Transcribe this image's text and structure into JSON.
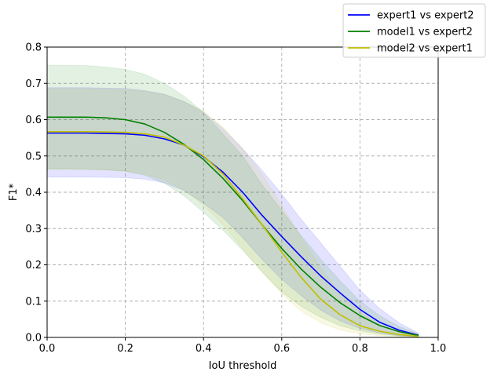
{
  "chart_data": {
    "type": "line",
    "xlabel": "IoU threshold",
    "ylabel": "F1*",
    "xlim": [
      0.0,
      1.0
    ],
    "ylim": [
      0.0,
      0.8
    ],
    "xticks": [
      "0.0",
      "0.2",
      "0.4",
      "0.6",
      "0.8",
      "1.0"
    ],
    "yticks": [
      "0.0",
      "0.1",
      "0.2",
      "0.3",
      "0.4",
      "0.5",
      "0.6",
      "0.7",
      "0.8"
    ],
    "grid": true,
    "legend_position": "top-right",
    "x": [
      0.0,
      0.05,
      0.1,
      0.15,
      0.2,
      0.25,
      0.3,
      0.35,
      0.4,
      0.45,
      0.5,
      0.55,
      0.6,
      0.65,
      0.7,
      0.75,
      0.8,
      0.85,
      0.9,
      0.95
    ],
    "series": [
      {
        "name": "expert1 vs expert2",
        "color": "#0000ff",
        "band_color": "#0000ff",
        "values": [
          0.563,
          0.563,
          0.563,
          0.562,
          0.561,
          0.557,
          0.547,
          0.53,
          0.498,
          0.455,
          0.4,
          0.336,
          0.278,
          0.222,
          0.169,
          0.122,
          0.077,
          0.042,
          0.02,
          0.006
        ],
        "lower": [
          0.442,
          0.442,
          0.442,
          0.441,
          0.44,
          0.436,
          0.426,
          0.405,
          0.37,
          0.33,
          0.275,
          0.215,
          0.16,
          0.115,
          0.075,
          0.045,
          0.025,
          0.012,
          0.005,
          0.002
        ],
        "upper": [
          0.688,
          0.688,
          0.688,
          0.687,
          0.686,
          0.68,
          0.67,
          0.65,
          0.62,
          0.575,
          0.52,
          0.46,
          0.395,
          0.325,
          0.26,
          0.195,
          0.13,
          0.08,
          0.04,
          0.012
        ]
      },
      {
        "name": "model1 vs expert2",
        "color": "#008000",
        "band_color": "#008000",
        "values": [
          0.607,
          0.607,
          0.607,
          0.605,
          0.6,
          0.588,
          0.565,
          0.532,
          0.49,
          0.438,
          0.377,
          0.31,
          0.245,
          0.188,
          0.138,
          0.095,
          0.06,
          0.033,
          0.016,
          0.005
        ],
        "lower": [
          0.465,
          0.465,
          0.464,
          0.462,
          0.458,
          0.447,
          0.425,
          0.39,
          0.345,
          0.295,
          0.24,
          0.18,
          0.125,
          0.085,
          0.055,
          0.032,
          0.018,
          0.009,
          0.004,
          0.001
        ],
        "upper": [
          0.75,
          0.75,
          0.749,
          0.745,
          0.738,
          0.725,
          0.7,
          0.665,
          0.62,
          0.56,
          0.5,
          0.42,
          0.35,
          0.28,
          0.215,
          0.155,
          0.1,
          0.06,
          0.03,
          0.01
        ]
      },
      {
        "name": "model2 vs expert1",
        "color": "#bfbf00",
        "band_color": "#bfbf00",
        "values": [
          0.567,
          0.567,
          0.567,
          0.566,
          0.565,
          0.561,
          0.552,
          0.53,
          0.5,
          0.45,
          0.382,
          0.31,
          0.235,
          0.165,
          0.105,
          0.062,
          0.032,
          0.017,
          0.008,
          0.003
        ],
        "lower": [
          0.462,
          0.462,
          0.462,
          0.461,
          0.458,
          0.45,
          0.435,
          0.405,
          0.365,
          0.31,
          0.245,
          0.18,
          0.12,
          0.072,
          0.04,
          0.02,
          0.01,
          0.005,
          0.002,
          0.001
        ],
        "upper": [
          0.685,
          0.685,
          0.685,
          0.684,
          0.683,
          0.678,
          0.67,
          0.65,
          0.625,
          0.58,
          0.52,
          0.45,
          0.365,
          0.275,
          0.19,
          0.12,
          0.07,
          0.035,
          0.015,
          0.005
        ]
      }
    ]
  }
}
